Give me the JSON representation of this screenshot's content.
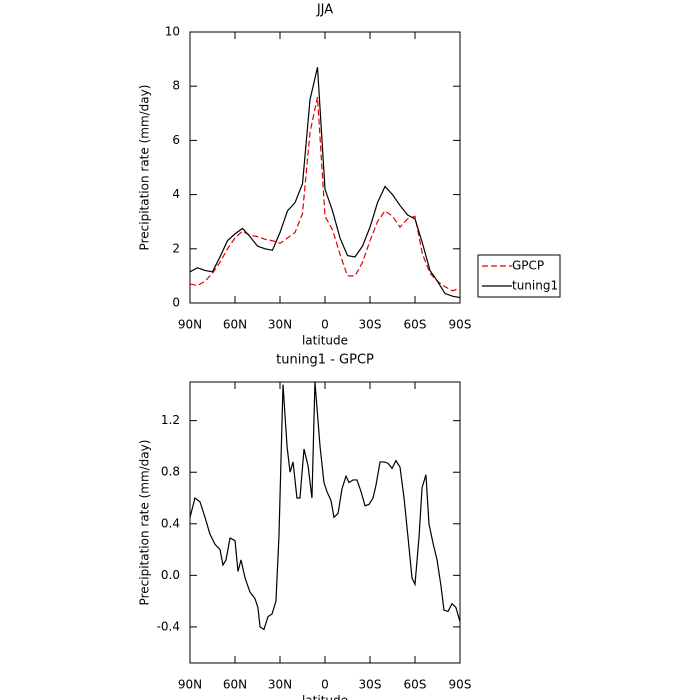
{
  "chart_data": [
    {
      "type": "line",
      "title": "JJA",
      "x_label": "latitude",
      "y_label": "Precipitation rate (mm/day)",
      "x": [
        90,
        85,
        80,
        75,
        70,
        65,
        60,
        55,
        50,
        45,
        40,
        35,
        30,
        25,
        20,
        15,
        10,
        5,
        0,
        -5,
        -10,
        -15,
        -20,
        -25,
        -30,
        -35,
        -40,
        -45,
        -50,
        -55,
        -60,
        -65,
        -70,
        -75,
        -80,
        -85,
        -90
      ],
      "series": [
        {
          "name": "GPCP",
          "color": "#e00000",
          "dashed": true,
          "values": [
            0.7,
            0.65,
            0.8,
            1.1,
            1.5,
            2.0,
            2.4,
            2.65,
            2.5,
            2.45,
            2.35,
            2.3,
            2.2,
            2.4,
            2.6,
            3.3,
            6.3,
            7.6,
            3.2,
            2.7,
            1.8,
            1.0,
            1.0,
            1.5,
            2.3,
            3.0,
            3.4,
            3.2,
            2.8,
            3.1,
            3.2,
            1.8,
            1.1,
            0.8,
            0.6,
            0.45,
            0.55
          ]
        },
        {
          "name": "tuning1",
          "color": "#000000",
          "dashed": false,
          "values": [
            1.15,
            1.3,
            1.2,
            1.15,
            1.7,
            2.3,
            2.55,
            2.75,
            2.45,
            2.1,
            2.0,
            1.95,
            2.6,
            3.4,
            3.7,
            4.4,
            7.5,
            8.7,
            4.2,
            3.4,
            2.4,
            1.75,
            1.7,
            2.1,
            2.8,
            3.7,
            4.3,
            4.0,
            3.6,
            3.25,
            3.1,
            2.2,
            1.2,
            0.8,
            0.35,
            0.25,
            0.2
          ]
        }
      ],
      "xlim": [
        90,
        -90
      ],
      "xticks": [
        {
          "value": 90,
          "label": "90N"
        },
        {
          "value": 60,
          "label": "60N"
        },
        {
          "value": 30,
          "label": "30N"
        },
        0,
        {
          "value": -30,
          "label": "30S"
        },
        {
          "value": -60,
          "label": "60S"
        },
        {
          "value": -90,
          "label": "90S"
        }
      ],
      "ylim": [
        0,
        10
      ],
      "yticks": [
        0,
        2,
        4,
        6,
        8,
        10
      ],
      "legend": "right"
    },
    {
      "type": "line",
      "title": "tuning1 - GPCP",
      "x_label": "latitude",
      "y_label": "Precipitation rate (mm/day)",
      "color": "#000000",
      "x": [
        90,
        86.7,
        83.3,
        80,
        76.7,
        73.3,
        70,
        68,
        66,
        63.3,
        60,
        58,
        56,
        53.3,
        50,
        46.7,
        44.7,
        43.3,
        40.7,
        38,
        35.3,
        32.7,
        30.7,
        28,
        25.3,
        23.3,
        21.3,
        18.7,
        16.7,
        14,
        11.3,
        8.7,
        6.7,
        3.3,
        0.7,
        -1.3,
        -4,
        -6,
        -8.7,
        -11.3,
        -14,
        -16,
        -18.7,
        -21.3,
        -24,
        -26.7,
        -29.3,
        -32,
        -34,
        -36.7,
        -39.3,
        -42,
        -44.7,
        -47.3,
        -50,
        -52.7,
        -55.3,
        -58,
        -60,
        -62.7,
        -64.7,
        -67.3,
        -69.3,
        -72,
        -74.7,
        -77.3,
        -79.3,
        -82,
        -84.7,
        -87.3,
        -90
      ],
      "values": [
        0.45,
        0.6,
        0.57,
        0.45,
        0.32,
        0.24,
        0.2,
        0.08,
        0.12,
        0.29,
        0.27,
        0.03,
        0.12,
        -0.02,
        -0.13,
        -0.18,
        -0.25,
        -0.4,
        -0.42,
        -0.32,
        -0.3,
        -0.2,
        0.3,
        1.48,
        1.0,
        0.8,
        0.88,
        0.6,
        0.6,
        0.98,
        0.85,
        0.6,
        1.5,
        1.0,
        0.72,
        0.65,
        0.58,
        0.45,
        0.48,
        0.67,
        0.77,
        0.72,
        0.74,
        0.74,
        0.65,
        0.54,
        0.55,
        0.6,
        0.7,
        0.88,
        0.88,
        0.87,
        0.83,
        0.89,
        0.84,
        0.6,
        0.3,
        -0.02,
        -0.07,
        0.3,
        0.68,
        0.78,
        0.4,
        0.25,
        0.12,
        -0.08,
        -0.27,
        -0.28,
        -0.22,
        -0.25,
        -0.36
      ],
      "xlim": [
        90,
        -90
      ],
      "xticks": [
        {
          "value": 90,
          "label": "90N"
        },
        {
          "value": 60,
          "label": "60N"
        },
        {
          "value": 30,
          "label": "30N"
        },
        0,
        {
          "value": -30,
          "label": "30S"
        },
        {
          "value": -60,
          "label": "60S"
        },
        {
          "value": -90,
          "label": "90S"
        }
      ],
      "ylim": [
        -0.68,
        1.5
      ],
      "yticks": [
        -0.4,
        {
          "value": 0,
          "label": "0.0"
        },
        0.4,
        0.8,
        1.2
      ]
    }
  ]
}
